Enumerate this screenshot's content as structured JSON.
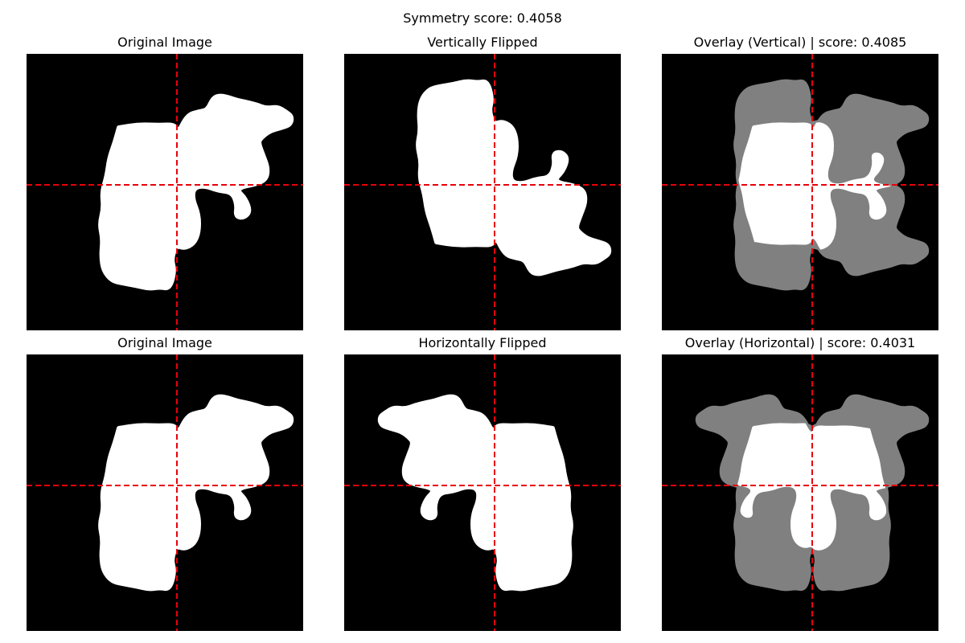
{
  "figure": {
    "suptitle": "Symmetry score: 0.4058"
  },
  "panels": [
    {
      "id": "original-top",
      "title": "Original Image",
      "kind": "original"
    },
    {
      "id": "vertically-flipped",
      "title": "Vertically Flipped",
      "kind": "vflip"
    },
    {
      "id": "overlay-vertical",
      "title": "Overlay (Vertical) | score: 0.4085",
      "kind": "overlay-v"
    },
    {
      "id": "original-bottom",
      "title": "Original Image",
      "kind": "original"
    },
    {
      "id": "horizontally-flipped",
      "title": "Horizontally Flipped",
      "kind": "hflip"
    },
    {
      "id": "overlay-horizontal",
      "title": "Overlay (Horizontal) | score: 0.4031",
      "kind": "overlay-h"
    }
  ],
  "colors": {
    "background": "#000000",
    "shape": "#ffffff",
    "overlap_gray": "#808080",
    "crosshair": "#e8000b"
  }
}
